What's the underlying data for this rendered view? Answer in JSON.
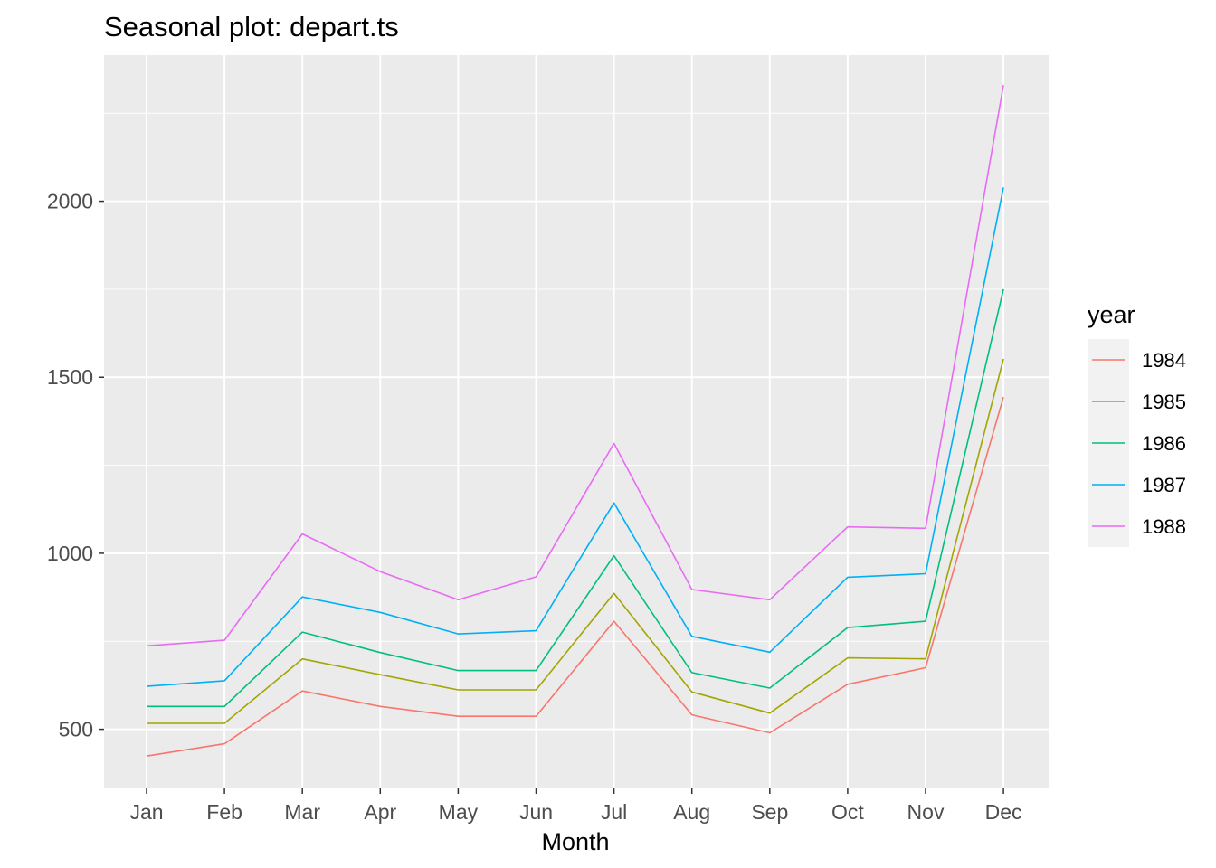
{
  "chart_data": {
    "type": "line",
    "title": "Seasonal plot: depart.ts",
    "xlabel": "Month",
    "ylabel": "",
    "categories": [
      "Jan",
      "Feb",
      "Mar",
      "Apr",
      "May",
      "Jun",
      "Jul",
      "Aug",
      "Sep",
      "Oct",
      "Nov",
      "Dec"
    ],
    "yticks": [
      500,
      1000,
      1500,
      2000
    ],
    "ylim": [
      332,
      2415
    ],
    "grid": true,
    "legend": {
      "title": "year",
      "position": "right"
    },
    "series": [
      {
        "name": "1984",
        "color": "#F8766D",
        "values": [
          424,
          459,
          609,
          565,
          537,
          537,
          807,
          541,
          490,
          628,
          675,
          1444
        ]
      },
      {
        "name": "1985",
        "color": "#A3A500",
        "values": [
          517,
          517,
          700,
          655,
          612,
          612,
          886,
          606,
          546,
          703,
          700,
          1552
        ]
      },
      {
        "name": "1986",
        "color": "#00BF7D",
        "values": [
          565,
          565,
          776,
          718,
          667,
          667,
          993,
          661,
          617,
          789,
          807,
          1750
        ]
      },
      {
        "name": "1987",
        "color": "#00B0F6",
        "values": [
          622,
          638,
          876,
          832,
          771,
          780,
          1143,
          764,
          719,
          932,
          942,
          2039
        ]
      },
      {
        "name": "1988",
        "color": "#E76BF3",
        "values": [
          737,
          753,
          1055,
          948,
          868,
          933,
          1312,
          897,
          868,
          1075,
          1071,
          2330
        ]
      }
    ]
  }
}
